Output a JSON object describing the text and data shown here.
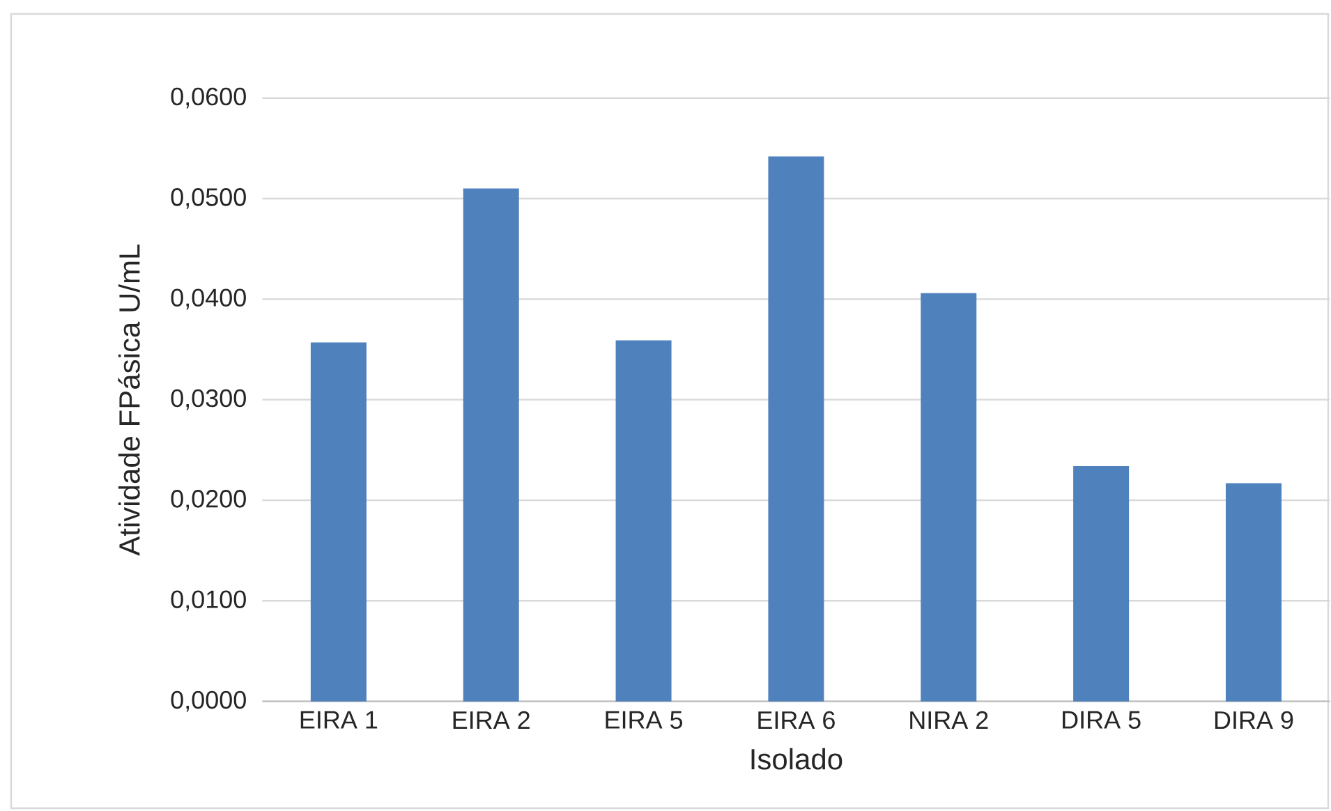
{
  "chart_data": {
    "type": "bar",
    "xlabel": "Isolado",
    "ylabel": "Atividade FPásica U/mL",
    "categories": [
      "EIRA 1",
      "EIRA 2",
      "EIRA 5",
      "EIRA 6",
      "NIRA 2",
      "DIRA 5",
      "DIRA 9"
    ],
    "values": [
      0.0357,
      0.051,
      0.0359,
      0.0542,
      0.0406,
      0.0234,
      0.0217
    ],
    "color": "#4f81bd",
    "ylim": [
      0,
      0.06
    ],
    "yticks": [
      {
        "value": 0,
        "label": "0,0000"
      },
      {
        "value": 0.01,
        "label": "0,0100"
      },
      {
        "value": 0.02,
        "label": "0,0200"
      },
      {
        "value": 0.03,
        "label": "0,0300"
      },
      {
        "value": 0.04,
        "label": "0,0400"
      },
      {
        "value": 0.05,
        "label": "0,0500"
      },
      {
        "value": 0.06,
        "label": "0,0600"
      }
    ],
    "grid": "y"
  }
}
